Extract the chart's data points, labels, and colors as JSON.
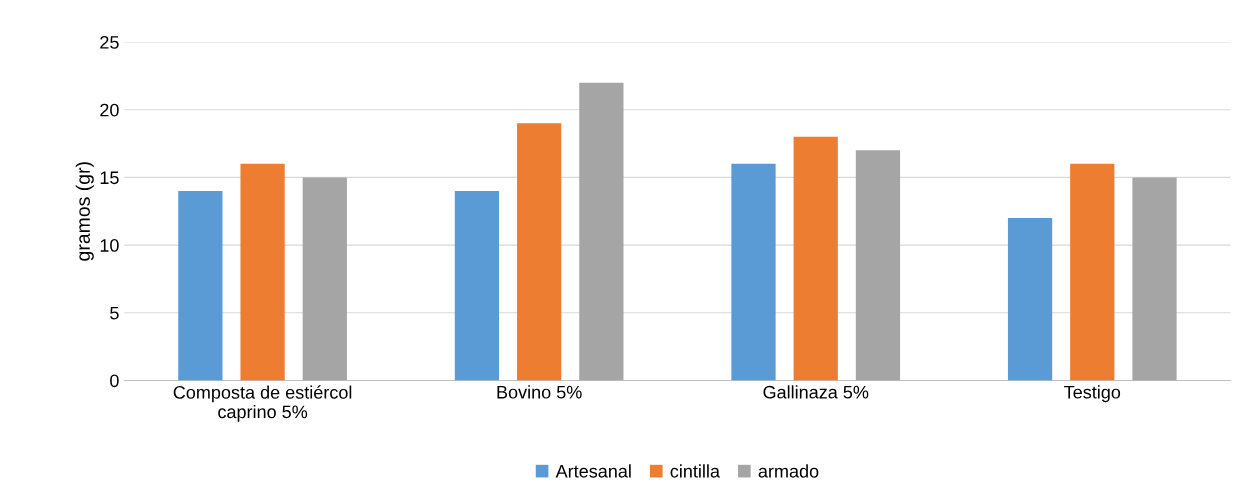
{
  "chart_data": {
    "type": "bar",
    "ylabel": "gramos (gr)",
    "categories": [
      "Composta de estiércol\ncaprino 5%",
      "Bovino 5%",
      "Gallinaza 5%",
      "Testigo"
    ],
    "series": [
      {
        "name": "Artesanal",
        "color": "#5b9bd5",
        "values": [
          14,
          14,
          16,
          12
        ]
      },
      {
        "name": "cintilla",
        "color": "#ed7d31",
        "values": [
          16,
          19,
          18,
          16
        ]
      },
      {
        "name": "armado",
        "color": "#a5a5a5",
        "values": [
          15,
          22,
          17,
          15
        ]
      }
    ],
    "ylim": [
      0,
      25
    ],
    "yticks": [
      0,
      5,
      10,
      15,
      20,
      25
    ],
    "grid": "y",
    "legend": "bottom"
  }
}
